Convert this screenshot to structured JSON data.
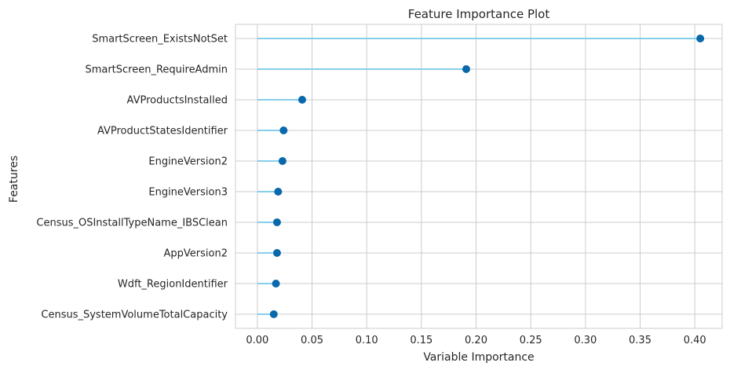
{
  "chart_data": {
    "type": "lollipop",
    "title": "Feature Importance Plot",
    "xlabel": "Variable Importance",
    "ylabel": "Features",
    "xlim": [
      -0.02,
      0.425
    ],
    "xticks": [
      "0.00",
      "0.05",
      "0.10",
      "0.15",
      "0.20",
      "0.25",
      "0.30",
      "0.35",
      "0.40"
    ],
    "grid": true,
    "categories": [
      "SmartScreen_ExistsNotSet",
      "SmartScreen_RequireAdmin",
      "AVProductsInstalled",
      "AVProductStatesIdentifier",
      "EngineVersion2",
      "EngineVersion3",
      "Census_OSInstallTypeName_IBSClean",
      "AppVersion2",
      "Wdft_RegionIdentifier",
      "Census_SystemVolumeTotalCapacity"
    ],
    "values": [
      0.405,
      0.191,
      0.041,
      0.024,
      0.023,
      0.019,
      0.018,
      0.018,
      0.017,
      0.015
    ],
    "line_color": "#87ceeb",
    "marker_color": "#0868ac",
    "grid_color": "#cccccc",
    "frame_color": "#cccccc"
  }
}
